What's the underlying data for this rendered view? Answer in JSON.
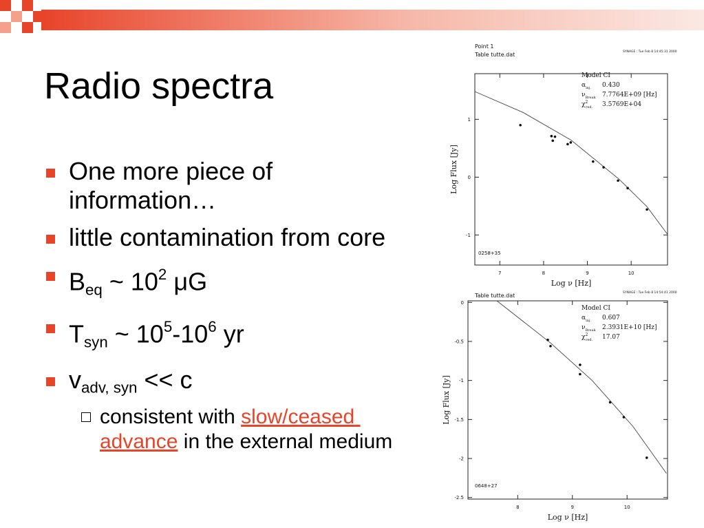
{
  "slide": {
    "title": "Radio spectra",
    "bullets": [
      {
        "level": 1,
        "parts": [
          {
            "text": "One more piece of information…"
          }
        ]
      },
      {
        "level": 1,
        "parts": [
          {
            "text": "little contamination from core"
          }
        ]
      },
      {
        "level": 1,
        "parts": [
          {
            "text": "B"
          },
          {
            "text": "eq",
            "style": "sub"
          },
          {
            "text": " ~ 10"
          },
          {
            "text": "2",
            "style": "sup"
          },
          {
            "text": " μG"
          }
        ]
      },
      {
        "level": 1,
        "parts": [
          {
            "text": "T"
          },
          {
            "text": "syn",
            "style": "sub"
          },
          {
            "text": " ~ 10"
          },
          {
            "text": "5",
            "style": "sup"
          },
          {
            "text": "-10"
          },
          {
            "text": "6",
            "style": "sup"
          },
          {
            "text": " yr"
          }
        ]
      },
      {
        "level": 1,
        "parts": [
          {
            "text": "v"
          },
          {
            "text": "adv, syn",
            "style": "sub"
          },
          {
            "text": " << c"
          }
        ]
      },
      {
        "level": 2,
        "parts": [
          {
            "text": "consistent with "
          },
          {
            "text": "slow/ceased advance",
            "style": "link"
          },
          {
            "text": " in the external medium"
          }
        ]
      }
    ]
  },
  "plots": [
    {
      "header": [
        "Point   1",
        "Table tutte.dat"
      ],
      "stamp": "SYNAGE : Tue Feb  8 14:45:31 2000",
      "model": "Model CI",
      "params": [
        {
          "symbol": "α",
          "sub": "inj.",
          "value": "0.430"
        },
        {
          "symbol": "ν",
          "sub": "Break",
          "value": "7.7764E+09 [Hz]"
        },
        {
          "symbol": "χ",
          "sup": "2",
          "sub": "red.",
          "value": "3.5769E+04"
        }
      ],
      "source": "0258+35",
      "xlabel": "Log  ν  [Hz]",
      "ylabel": "Log  Flux  [Jy]",
      "xlim": [
        6.43,
        10.83
      ],
      "ylim": [
        -1.52,
        1.79
      ],
      "xticks": [
        7,
        8,
        9,
        10
      ],
      "yticks": [
        -1,
        0,
        1
      ],
      "points": {
        "x": [
          7.47,
          8.18,
          8.21,
          8.26,
          8.55,
          8.62,
          9.13,
          9.37,
          9.7,
          9.92,
          10.36
        ],
        "y": [
          0.9,
          0.71,
          0.63,
          0.7,
          0.57,
          0.6,
          0.27,
          0.17,
          -0.06,
          -0.19,
          -0.56
        ]
      },
      "curve": {
        "x": [
          6.43,
          7.53,
          8.63,
          9.73,
          10.36,
          10.83
        ],
        "y": [
          1.48,
          1.12,
          0.64,
          -0.04,
          -0.51,
          -0.99
        ]
      }
    },
    {
      "header": [
        "Table tutte.dat"
      ],
      "stamp": "SYNAGE : Tue Feb  8 14:54:41 2000",
      "model": "Model CI",
      "params": [
        {
          "symbol": "α",
          "sub": "inj.",
          "value": "0.607"
        },
        {
          "symbol": "ν",
          "sub": "Break",
          "value": "2.3931E+10 [Hz]"
        },
        {
          "symbol": "χ",
          "sup": "2",
          "sub": "red.",
          "value": "17.07"
        }
      ],
      "source": "0648+27",
      "xlabel": "Log  ν  [Hz]",
      "ylabel": "Log  Flux  [Jy]",
      "xlim": [
        7.09,
        10.74
      ],
      "ylim": [
        -2.52,
        0.02
      ],
      "xticks": [
        8,
        9,
        10
      ],
      "yticks": [
        0,
        -0.5,
        -1,
        -1.5,
        -2,
        -2.5
      ],
      "points": {
        "x": [
          8.55,
          8.6,
          9.14,
          9.14,
          9.69,
          9.94,
          10.36
        ],
        "y": [
          -0.48,
          -0.56,
          -0.8,
          -0.92,
          -1.28,
          -1.47,
          -1.99
        ]
      },
      "curve": {
        "x": [
          7.62,
          8.6,
          9.36,
          10.11,
          10.72
        ],
        "y": [
          0.02,
          -0.52,
          -1.0,
          -1.59,
          -2.19
        ]
      }
    }
  ]
}
